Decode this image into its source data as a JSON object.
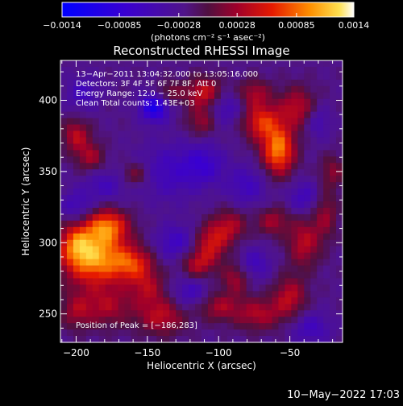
{
  "chart_data": {
    "type": "heatmap",
    "title": "Reconstructed RHESSI Image",
    "xlabel": "Heliocentric X (arcsec)",
    "ylabel": "Heliocentric Y (arcsec)",
    "xlim": [
      -211,
      -13
    ],
    "ylim": [
      230,
      428
    ],
    "x_ticks": [
      -200,
      -150,
      -100,
      -50
    ],
    "x_tick_labels": [
      "−200",
      "−150",
      "−100",
      "−50"
    ],
    "y_ticks": [
      250,
      300,
      350,
      400
    ],
    "y_tick_labels": [
      "250",
      "300",
      "350",
      "400"
    ],
    "colorbar": {
      "range": [
        -0.0014,
        0.0014
      ],
      "ticks": [
        -0.0014,
        -0.00085,
        -0.00028,
        0.00028,
        0.00085,
        0.0014
      ],
      "tick_labels": [
        "−0.0014",
        "−0.00085",
        "−0.00028",
        "0.00028",
        "0.00085",
        "0.0014"
      ],
      "unit_label": "(photons cm⁻² s⁻¹ asec⁻²)"
    },
    "annotations": [
      "13−Apr−2011 13:04:32.000 to 13:05:16.000",
      "Detectors: 3F 4F 5F 6F 7F 8F, Att 0",
      "Energy Range: 12.0 − 25.0 keV",
      "Clean     Total counts: 1.43E+03"
    ],
    "peak_label": "Position of Peak = [−186,283]",
    "peak": [
      -186,
      283
    ],
    "blobs": [
      {
        "x": -187,
        "y": 290,
        "value": 0.00125,
        "sx": 16,
        "sy": 14
      },
      {
        "x": -178,
        "y": 312,
        "value": 0.0009,
        "sx": 10,
        "sy": 8
      },
      {
        "x": -200,
        "y": 300,
        "value": 0.0006,
        "sx": 8,
        "sy": 10
      },
      {
        "x": -160,
        "y": 285,
        "value": 0.0007,
        "sx": 10,
        "sy": 8
      },
      {
        "x": -150,
        "y": 268,
        "value": 0.0005,
        "sx": 9,
        "sy": 9
      },
      {
        "x": -140,
        "y": 248,
        "value": 0.0006,
        "sx": 12,
        "sy": 9
      },
      {
        "x": -178,
        "y": 255,
        "value": 0.0005,
        "sx": 12,
        "sy": 10
      },
      {
        "x": -200,
        "y": 252,
        "value": 0.00045,
        "sx": 8,
        "sy": 9
      },
      {
        "x": -115,
        "y": 285,
        "value": 0.0006,
        "sx": 8,
        "sy": 7
      },
      {
        "x": -105,
        "y": 300,
        "value": 0.0007,
        "sx": 8,
        "sy": 9
      },
      {
        "x": -92,
        "y": 312,
        "value": 0.00055,
        "sx": 8,
        "sy": 8
      },
      {
        "x": -88,
        "y": 275,
        "value": 0.0005,
        "sx": 7,
        "sy": 8
      },
      {
        "x": -100,
        "y": 255,
        "value": 0.0005,
        "sx": 10,
        "sy": 7
      },
      {
        "x": -72,
        "y": 250,
        "value": 0.00055,
        "sx": 12,
        "sy": 8
      },
      {
        "x": -50,
        "y": 262,
        "value": 0.0006,
        "sx": 8,
        "sy": 10
      },
      {
        "x": -40,
        "y": 300,
        "value": 0.0006,
        "sx": 8,
        "sy": 12
      },
      {
        "x": -62,
        "y": 315,
        "value": 0.0005,
        "sx": 8,
        "sy": 7
      },
      {
        "x": -25,
        "y": 320,
        "value": 0.00045,
        "sx": 6,
        "sy": 12
      },
      {
        "x": -20,
        "y": 350,
        "value": 0.0004,
        "sx": 6,
        "sy": 8
      },
      {
        "x": -58,
        "y": 365,
        "value": 0.00115,
        "sx": 8,
        "sy": 12
      },
      {
        "x": -70,
        "y": 385,
        "value": 0.0008,
        "sx": 9,
        "sy": 9
      },
      {
        "x": -45,
        "y": 395,
        "value": 0.0006,
        "sx": 9,
        "sy": 10
      },
      {
        "x": -75,
        "y": 405,
        "value": 0.0005,
        "sx": 8,
        "sy": 7
      },
      {
        "x": -110,
        "y": 405,
        "value": 0.0007,
        "sx": 9,
        "sy": 8
      },
      {
        "x": -112,
        "y": 385,
        "value": 0.00045,
        "sx": 7,
        "sy": 7
      },
      {
        "x": -135,
        "y": 405,
        "value": 0.0004,
        "sx": 7,
        "sy": 6
      },
      {
        "x": -200,
        "y": 375,
        "value": 0.0006,
        "sx": 7,
        "sy": 8
      },
      {
        "x": -190,
        "y": 360,
        "value": 0.0005,
        "sx": 7,
        "sy": 7
      },
      {
        "x": -158,
        "y": 348,
        "value": 0.00045,
        "sx": 7,
        "sy": 6
      },
      {
        "x": -145,
        "y": 395,
        "value": -0.0009,
        "sx": 7,
        "sy": 7
      },
      {
        "x": -135,
        "y": 350,
        "value": -0.0004,
        "sx": 16,
        "sy": 14
      },
      {
        "x": -110,
        "y": 355,
        "value": -0.00045,
        "sx": 10,
        "sy": 10
      },
      {
        "x": -95,
        "y": 395,
        "value": -0.0004,
        "sx": 9,
        "sy": 8
      },
      {
        "x": -180,
        "y": 340,
        "value": -0.00035,
        "sx": 10,
        "sy": 8
      },
      {
        "x": -200,
        "y": 325,
        "value": -0.0004,
        "sx": 8,
        "sy": 8
      },
      {
        "x": -130,
        "y": 300,
        "value": -0.00045,
        "sx": 10,
        "sy": 9
      },
      {
        "x": -80,
        "y": 340,
        "value": -0.0004,
        "sx": 10,
        "sy": 10
      },
      {
        "x": -120,
        "y": 265,
        "value": -0.0004,
        "sx": 9,
        "sy": 8
      },
      {
        "x": -75,
        "y": 285,
        "value": -0.0004,
        "sx": 8,
        "sy": 8
      },
      {
        "x": -40,
        "y": 332,
        "value": -0.0004,
        "sx": 8,
        "sy": 8
      },
      {
        "x": -35,
        "y": 240,
        "value": -0.0004,
        "sx": 10,
        "sy": 8
      },
      {
        "x": -30,
        "y": 385,
        "value": -0.00035,
        "sx": 6,
        "sy": 8
      },
      {
        "x": -195,
        "y": 405,
        "value": -0.0004,
        "sx": 8,
        "sy": 8
      }
    ]
  },
  "footer": {
    "timestamp": "10−May−2022 17:03"
  }
}
